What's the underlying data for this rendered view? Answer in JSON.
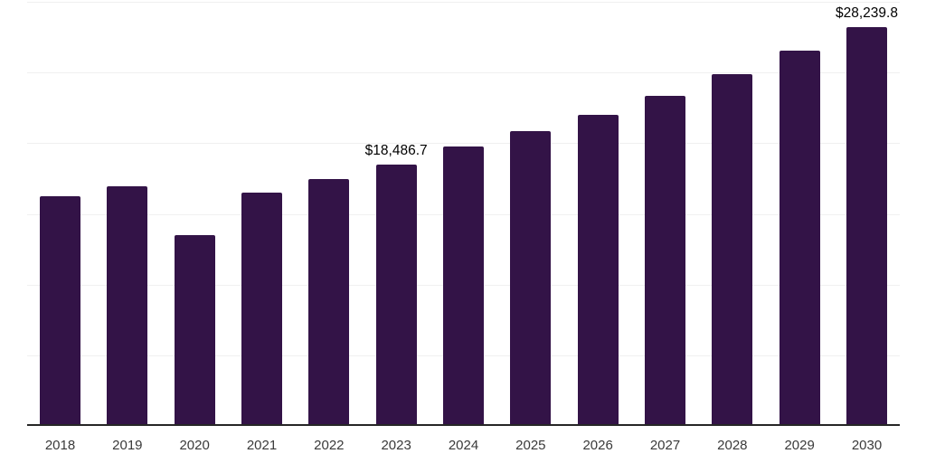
{
  "chart_data": {
    "type": "bar",
    "title": "",
    "xlabel": "",
    "ylabel": "",
    "categories": [
      "2018",
      "2019",
      "2020",
      "2021",
      "2022",
      "2023",
      "2024",
      "2025",
      "2026",
      "2027",
      "2028",
      "2029",
      "2030"
    ],
    "values": [
      16260,
      16940,
      13490,
      16520,
      17440,
      18486.7,
      19740,
      20840,
      21980,
      23360,
      24890,
      26540,
      28239.8
    ],
    "annotations": [
      {
        "category": "2023",
        "value": 18486.7,
        "text": "$18,486.7"
      },
      {
        "category": "2030",
        "value": 28239.8,
        "text": "$28,239.8"
      }
    ],
    "ylim": [
      0,
      30000
    ],
    "grid_step": 5000,
    "grid": true,
    "legend": false,
    "y_axis_tick_labels_visible": false,
    "colors": {
      "bar": "#331347",
      "axis": "#262626",
      "gridline": "#f0f0f0",
      "tick_label": "#3a3a3a",
      "data_label": "#000000",
      "background": "#ffffff"
    }
  }
}
